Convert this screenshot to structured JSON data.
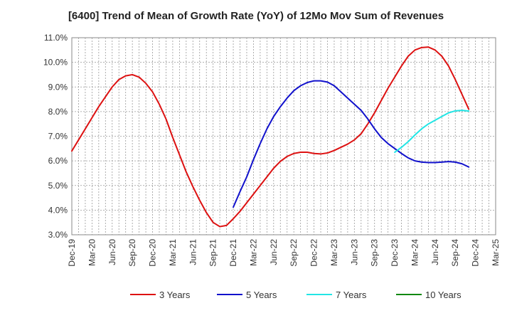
{
  "chart_data": {
    "type": "line",
    "title": "[6400]  Trend of Mean of Growth Rate (YoY) of 12Mo Mov Sum of Revenues",
    "xlabel": "",
    "ylabel": "",
    "ylim": [
      3.0,
      11.0
    ],
    "y_ticks": [
      3.0,
      4.0,
      5.0,
      6.0,
      7.0,
      8.0,
      9.0,
      10.0,
      11.0
    ],
    "y_tick_labels": [
      "3.0%",
      "4.0%",
      "5.0%",
      "6.0%",
      "7.0%",
      "8.0%",
      "9.0%",
      "10.0%",
      "11.0%"
    ],
    "x_ticks": [
      "Dec-19",
      "Mar-20",
      "Jun-20",
      "Sep-20",
      "Dec-20",
      "Mar-21",
      "Jun-21",
      "Sep-21",
      "Dec-21",
      "Mar-22",
      "Jun-22",
      "Sep-22",
      "Dec-22",
      "Mar-23",
      "Jun-23",
      "Sep-23",
      "Dec-23",
      "Mar-24",
      "Jun-24",
      "Sep-24",
      "Dec-24",
      "Mar-25"
    ],
    "grid": true,
    "legend_position": "bottom",
    "series": [
      {
        "name": "3 Years",
        "color": "#dd1111",
        "start_index": 0,
        "values": [
          6.4,
          6.85,
          7.3,
          7.75,
          8.2,
          8.6,
          9.0,
          9.3,
          9.45,
          9.5,
          9.4,
          9.15,
          8.8,
          8.3,
          7.7,
          6.95,
          6.25,
          5.55,
          4.95,
          4.4,
          3.9,
          3.5,
          3.33,
          3.38,
          3.65,
          3.95,
          4.3,
          4.65,
          5.0,
          5.35,
          5.7,
          5.98,
          6.18,
          6.3,
          6.35,
          6.35,
          6.3,
          6.28,
          6.32,
          6.42,
          6.55,
          6.68,
          6.85,
          7.1,
          7.5,
          7.95,
          8.45,
          8.95,
          9.4,
          9.85,
          10.25,
          10.5,
          10.6,
          10.62,
          10.5,
          10.25,
          9.85,
          9.3,
          8.7,
          8.1
        ]
      },
      {
        "name": "5 Years",
        "color": "#1111cc",
        "start_index": 24,
        "values": [
          4.12,
          4.75,
          5.35,
          6.05,
          6.7,
          7.3,
          7.8,
          8.2,
          8.55,
          8.85,
          9.05,
          9.18,
          9.25,
          9.25,
          9.2,
          9.05,
          8.8,
          8.55,
          8.3,
          8.05,
          7.7,
          7.3,
          6.95,
          6.7,
          6.5,
          6.3,
          6.12,
          6.0,
          5.95,
          5.93,
          5.93,
          5.95,
          5.97,
          5.95,
          5.88,
          5.75
        ]
      },
      {
        "name": "7 Years",
        "color": "#22e5e5",
        "start_index": 48,
        "values": [
          6.35,
          6.55,
          6.78,
          7.05,
          7.3,
          7.5,
          7.65,
          7.8,
          7.95,
          8.03,
          8.05,
          8.02
        ]
      },
      {
        "name": "10 Years",
        "color": "#118811",
        "start_index": 0,
        "values": []
      }
    ]
  }
}
